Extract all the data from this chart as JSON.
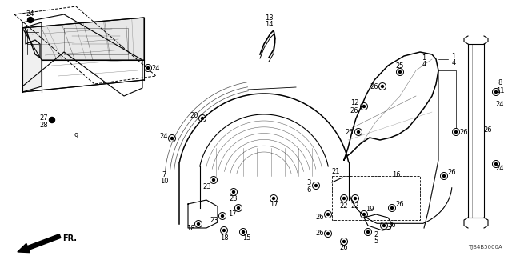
{
  "bg_color": "#ffffff",
  "watermark": "TJB4B5000A",
  "fig_width": 6.4,
  "fig_height": 3.2
}
